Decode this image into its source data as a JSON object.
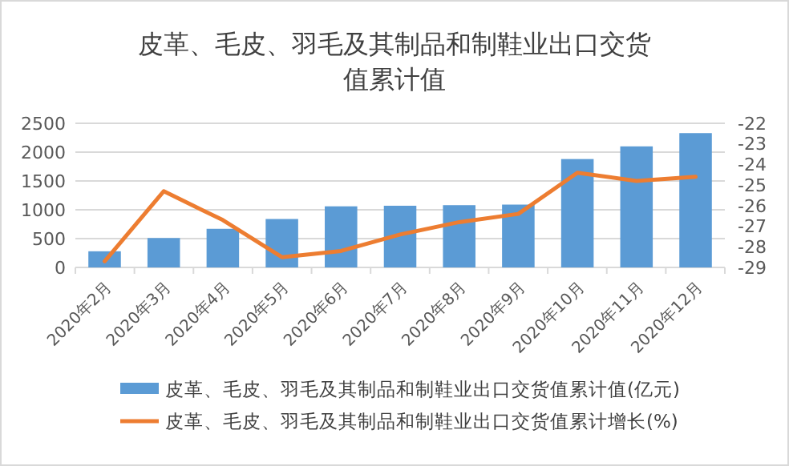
{
  "chart_data": {
    "type": "bar",
    "title": "皮革、毛皮、羽毛及其制品和制鞋业出口交货值累计值",
    "categories": [
      "2020年2月",
      "2020年3月",
      "2020年4月",
      "2020年5月",
      "2020年6月",
      "2020年7月",
      "2020年8月",
      "2020年9月",
      "2020年10月",
      "2020年11月",
      "2020年12月"
    ],
    "series": [
      {
        "name": "皮革、毛皮、羽毛及其制品和制鞋业出口交货值累计值(亿元)",
        "color": "#5b9bd5",
        "values": [
          280,
          510,
          670,
          840,
          1060,
          1070,
          1080,
          1090,
          1880,
          2100,
          2330
        ]
      },
      {
        "name": "皮革、毛皮、羽毛及其制品和制鞋业出口交货值累计增长(%)",
        "type": "line",
        "axis": "y2",
        "color": "#ed7d31",
        "values": [
          -28.7,
          -25.3,
          -26.7,
          -28.5,
          -28.2,
          -27.4,
          -26.8,
          -26.4,
          -24.4,
          -24.8,
          -24.6
        ]
      }
    ],
    "ylim": [
      0,
      2500
    ],
    "yticks": [
      0,
      500,
      1000,
      1500,
      2000,
      2500
    ],
    "y2lim": [
      -29,
      -22
    ],
    "y2ticks": [
      -29,
      -28,
      -27,
      -26,
      -25,
      -24,
      -23,
      -22
    ],
    "grid": "y",
    "legend": "bottom"
  }
}
